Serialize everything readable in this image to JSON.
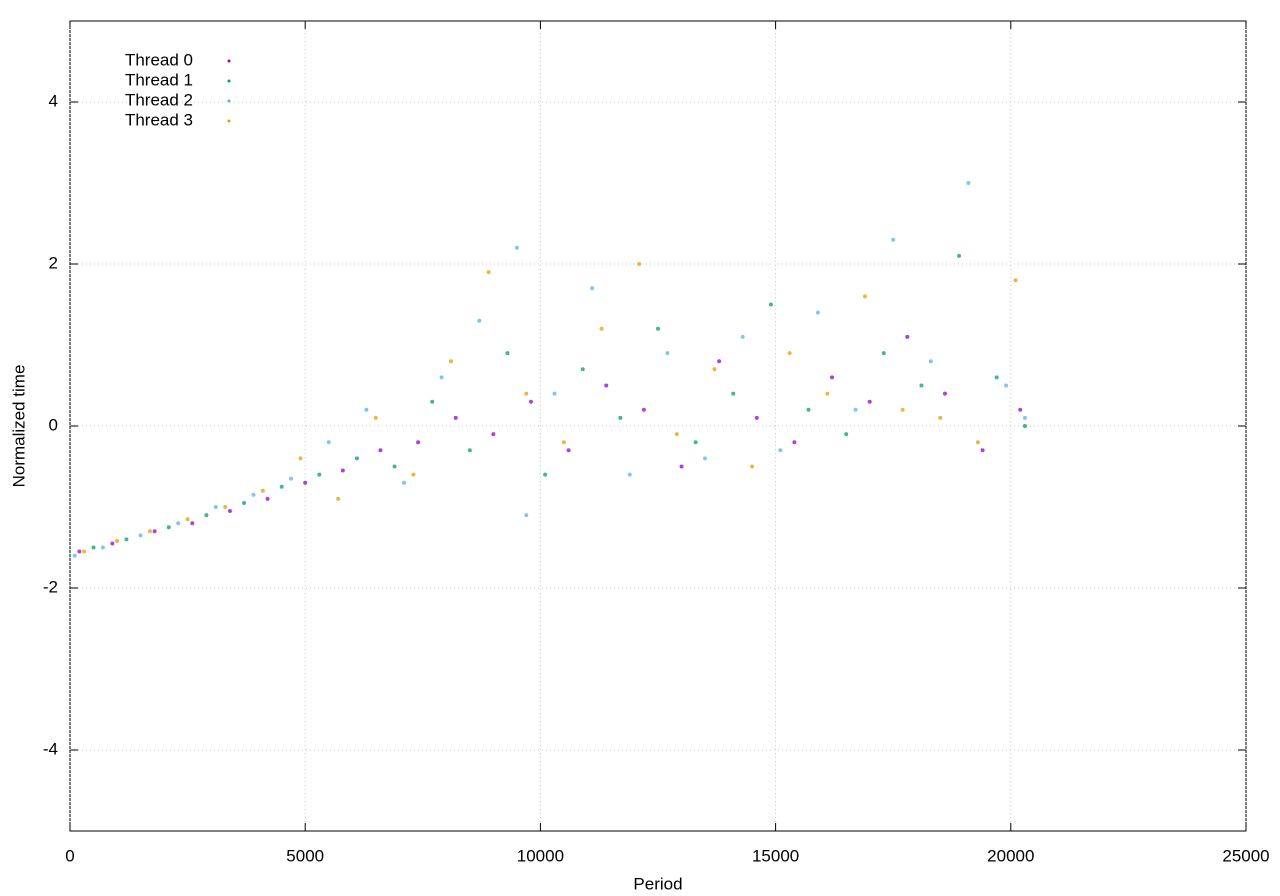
{
  "chart_data": {
    "type": "scatter",
    "xlabel": "Period",
    "ylabel": "Normalized time",
    "xlim": [
      0,
      25000
    ],
    "xticks": [
      0,
      5000,
      10000,
      15000,
      20000,
      25000
    ],
    "ylim": [
      -5,
      5
    ],
    "yticks": [
      -4,
      -2,
      0,
      2,
      4
    ],
    "grid": true,
    "legend": "top left",
    "series": [
      {
        "name": "Thread 0",
        "color": "#9400d3",
        "x": [
          200,
          900,
          1800,
          2600,
          3400,
          4200,
          5000,
          5800,
          6600,
          7400,
          8200,
          9000,
          9800,
          10600,
          11400,
          12200,
          13000,
          13800,
          14600,
          15400,
          16200,
          17000,
          17800,
          18600,
          19400,
          20200
        ],
        "values": [
          -1.55,
          -1.45,
          -1.3,
          -1.2,
          -1.05,
          -0.9,
          -0.7,
          -0.55,
          -0.3,
          -0.2,
          0.1,
          -0.1,
          0.3,
          -0.3,
          0.5,
          0.2,
          -0.5,
          0.8,
          0.1,
          -0.2,
          0.6,
          0.3,
          1.1,
          0.4,
          -0.3,
          0.2
        ]
      },
      {
        "name": "Thread 1",
        "color": "#009e73",
        "x": [
          500,
          1200,
          2100,
          2900,
          3700,
          4500,
          5300,
          6100,
          6900,
          7700,
          8500,
          9300,
          10100,
          10900,
          11700,
          12500,
          13300,
          14100,
          14900,
          15700,
          16500,
          17300,
          18100,
          18900,
          19700,
          20300
        ],
        "values": [
          -1.5,
          -1.4,
          -1.25,
          -1.1,
          -0.95,
          -0.75,
          -0.6,
          -0.4,
          -0.5,
          0.3,
          -0.3,
          0.9,
          -0.6,
          0.7,
          0.1,
          1.2,
          -0.2,
          0.4,
          1.5,
          0.2,
          -0.1,
          0.9,
          0.5,
          2.1,
          0.6,
          0.0
        ]
      },
      {
        "name": "Thread 2",
        "color": "#56b4e9",
        "x": [
          100,
          700,
          1500,
          2300,
          3100,
          3900,
          4700,
          5500,
          6300,
          7100,
          7900,
          8700,
          9500,
          9700,
          10300,
          11100,
          11900,
          12700,
          13500,
          14300,
          15100,
          15900,
          16700,
          17500,
          18300,
          19100,
          19900,
          20300
        ],
        "values": [
          -1.6,
          -1.5,
          -1.35,
          -1.2,
          -1.0,
          -0.85,
          -0.65,
          -0.2,
          0.2,
          -0.7,
          0.6,
          1.3,
          2.2,
          -1.1,
          0.4,
          1.7,
          -0.6,
          0.9,
          -0.4,
          1.1,
          -0.3,
          1.4,
          0.2,
          2.3,
          0.8,
          3.0,
          0.5,
          0.1
        ]
      },
      {
        "name": "Thread 3",
        "color": "#e69f00",
        "x": [
          300,
          1000,
          1700,
          2500,
          3300,
          4100,
          4900,
          5700,
          6500,
          7300,
          8100,
          8900,
          9700,
          10500,
          11300,
          12100,
          12900,
          13700,
          14500,
          15300,
          16100,
          16900,
          17700,
          18500,
          19300,
          20100
        ],
        "values": [
          -1.55,
          -1.42,
          -1.3,
          -1.15,
          -1.0,
          -0.8,
          -0.4,
          -0.9,
          0.1,
          -0.6,
          0.8,
          1.9,
          0.4,
          -0.2,
          1.2,
          2.0,
          -0.1,
          0.7,
          -0.5,
          0.9,
          0.4,
          1.6,
          0.2,
          0.1,
          -0.2,
          1.8
        ]
      }
    ]
  }
}
